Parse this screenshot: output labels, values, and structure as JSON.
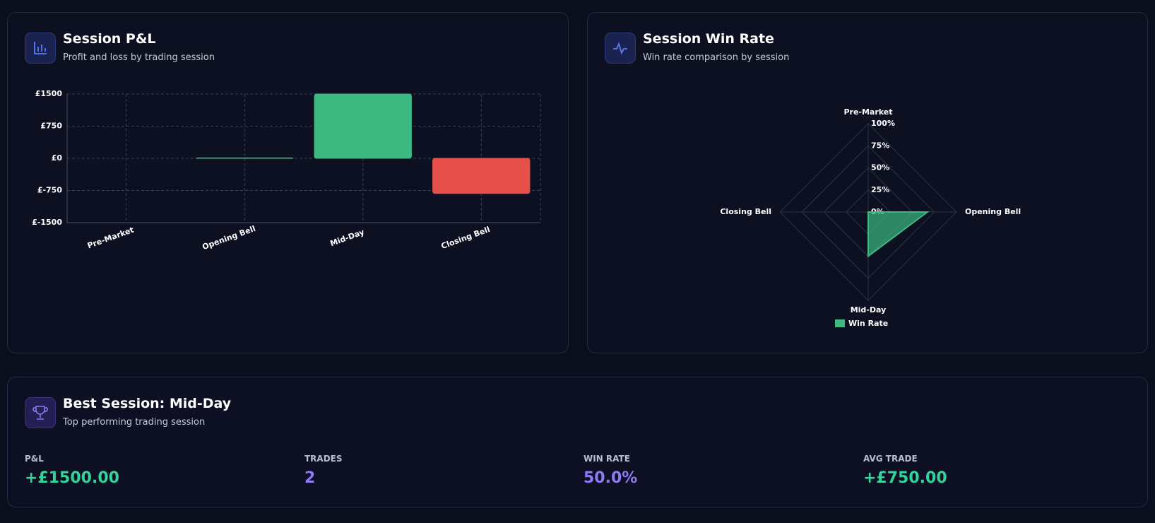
{
  "pnl_card": {
    "title": "Session P&L",
    "subtitle": "Profit and loss by trading session"
  },
  "winrate_card": {
    "title": "Session Win Rate",
    "subtitle": "Win rate comparison by session"
  },
  "best_session": {
    "title": "Best Session: Mid-Day",
    "subtitle": "Top performing trading session",
    "stats": [
      {
        "label": "P&L",
        "value": "+£1500.00"
      },
      {
        "label": "TRADES",
        "value": "2"
      },
      {
        "label": "WIN RATE",
        "value": "50.0%"
      },
      {
        "label": "AVG TRADE",
        "value": "+£750.00"
      }
    ]
  },
  "chart_data": [
    {
      "type": "bar",
      "categories": [
        "Pre-Market",
        "Opening Bell",
        "Mid-Day",
        "Closing Bell"
      ],
      "values": [
        0,
        10,
        1500,
        -820
      ],
      "positive_color": "#3dba82",
      "negative_color": "#e5504b",
      "ylim": [
        -1500,
        1500
      ],
      "yticks": [
        {
          "value": -1500,
          "label": "£-1500"
        },
        {
          "value": -750,
          "label": "£-750"
        },
        {
          "value": 0,
          "label": "£0"
        },
        {
          "value": 750,
          "label": "£750"
        },
        {
          "value": 1500,
          "label": "£1500"
        }
      ],
      "grid": true
    },
    {
      "type": "radar",
      "categories": [
        "Pre-Market",
        "Opening Bell",
        "Mid-Day",
        "Closing Bell"
      ],
      "series": [
        {
          "name": "Win Rate",
          "color": "#3dba82",
          "values": [
            0,
            67,
            50,
            0
          ]
        }
      ],
      "rlim": [
        0,
        100
      ],
      "rticks": [
        {
          "value": 0,
          "label": "0%"
        },
        {
          "value": 25,
          "label": "25%"
        },
        {
          "value": 50,
          "label": "50%"
        },
        {
          "value": 75,
          "label": "75%"
        },
        {
          "value": 100,
          "label": "100%"
        }
      ]
    }
  ]
}
